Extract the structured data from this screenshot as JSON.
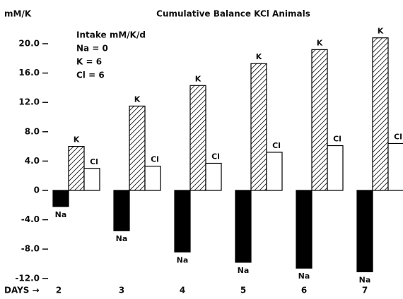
{
  "chart_data": {
    "type": "bar",
    "title": "Cumulative Balance KCl Animals",
    "y_label": "mM/K",
    "x_label": "DAYS →",
    "annotations": [
      "Intake mM/K/d",
      "Na = 0",
      "K = 6",
      "Cl = 6"
    ],
    "categories": [
      "2",
      "3",
      "4",
      "5",
      "6",
      "7"
    ],
    "series": [
      {
        "name": "Na",
        "color": "#000000",
        "hatch": false,
        "values": [
          -2.2,
          -5.5,
          -8.4,
          -9.8,
          -10.6,
          -11.1
        ]
      },
      {
        "name": "K",
        "color": "#000000",
        "hatch": true,
        "values": [
          6.0,
          11.5,
          14.3,
          17.3,
          19.2,
          20.8
        ]
      },
      {
        "name": "Cl",
        "color": "#ffffff",
        "hatch": false,
        "values": [
          3.0,
          3.3,
          3.7,
          5.2,
          6.1,
          6.4
        ]
      }
    ],
    "ylim": [
      -12,
      22
    ],
    "yticks": [
      {
        "value": 20,
        "label": "20.0"
      },
      {
        "value": 16,
        "label": "16.0"
      },
      {
        "value": 12,
        "label": "12.0"
      },
      {
        "value": 8,
        "label": "8.0"
      },
      {
        "value": 4,
        "label": "4.0"
      },
      0,
      {
        "value": -4,
        "label": "-4.0"
      },
      {
        "value": -8,
        "label": "-8.0"
      },
      {
        "value": -12,
        "label": "-12.0"
      }
    ]
  }
}
